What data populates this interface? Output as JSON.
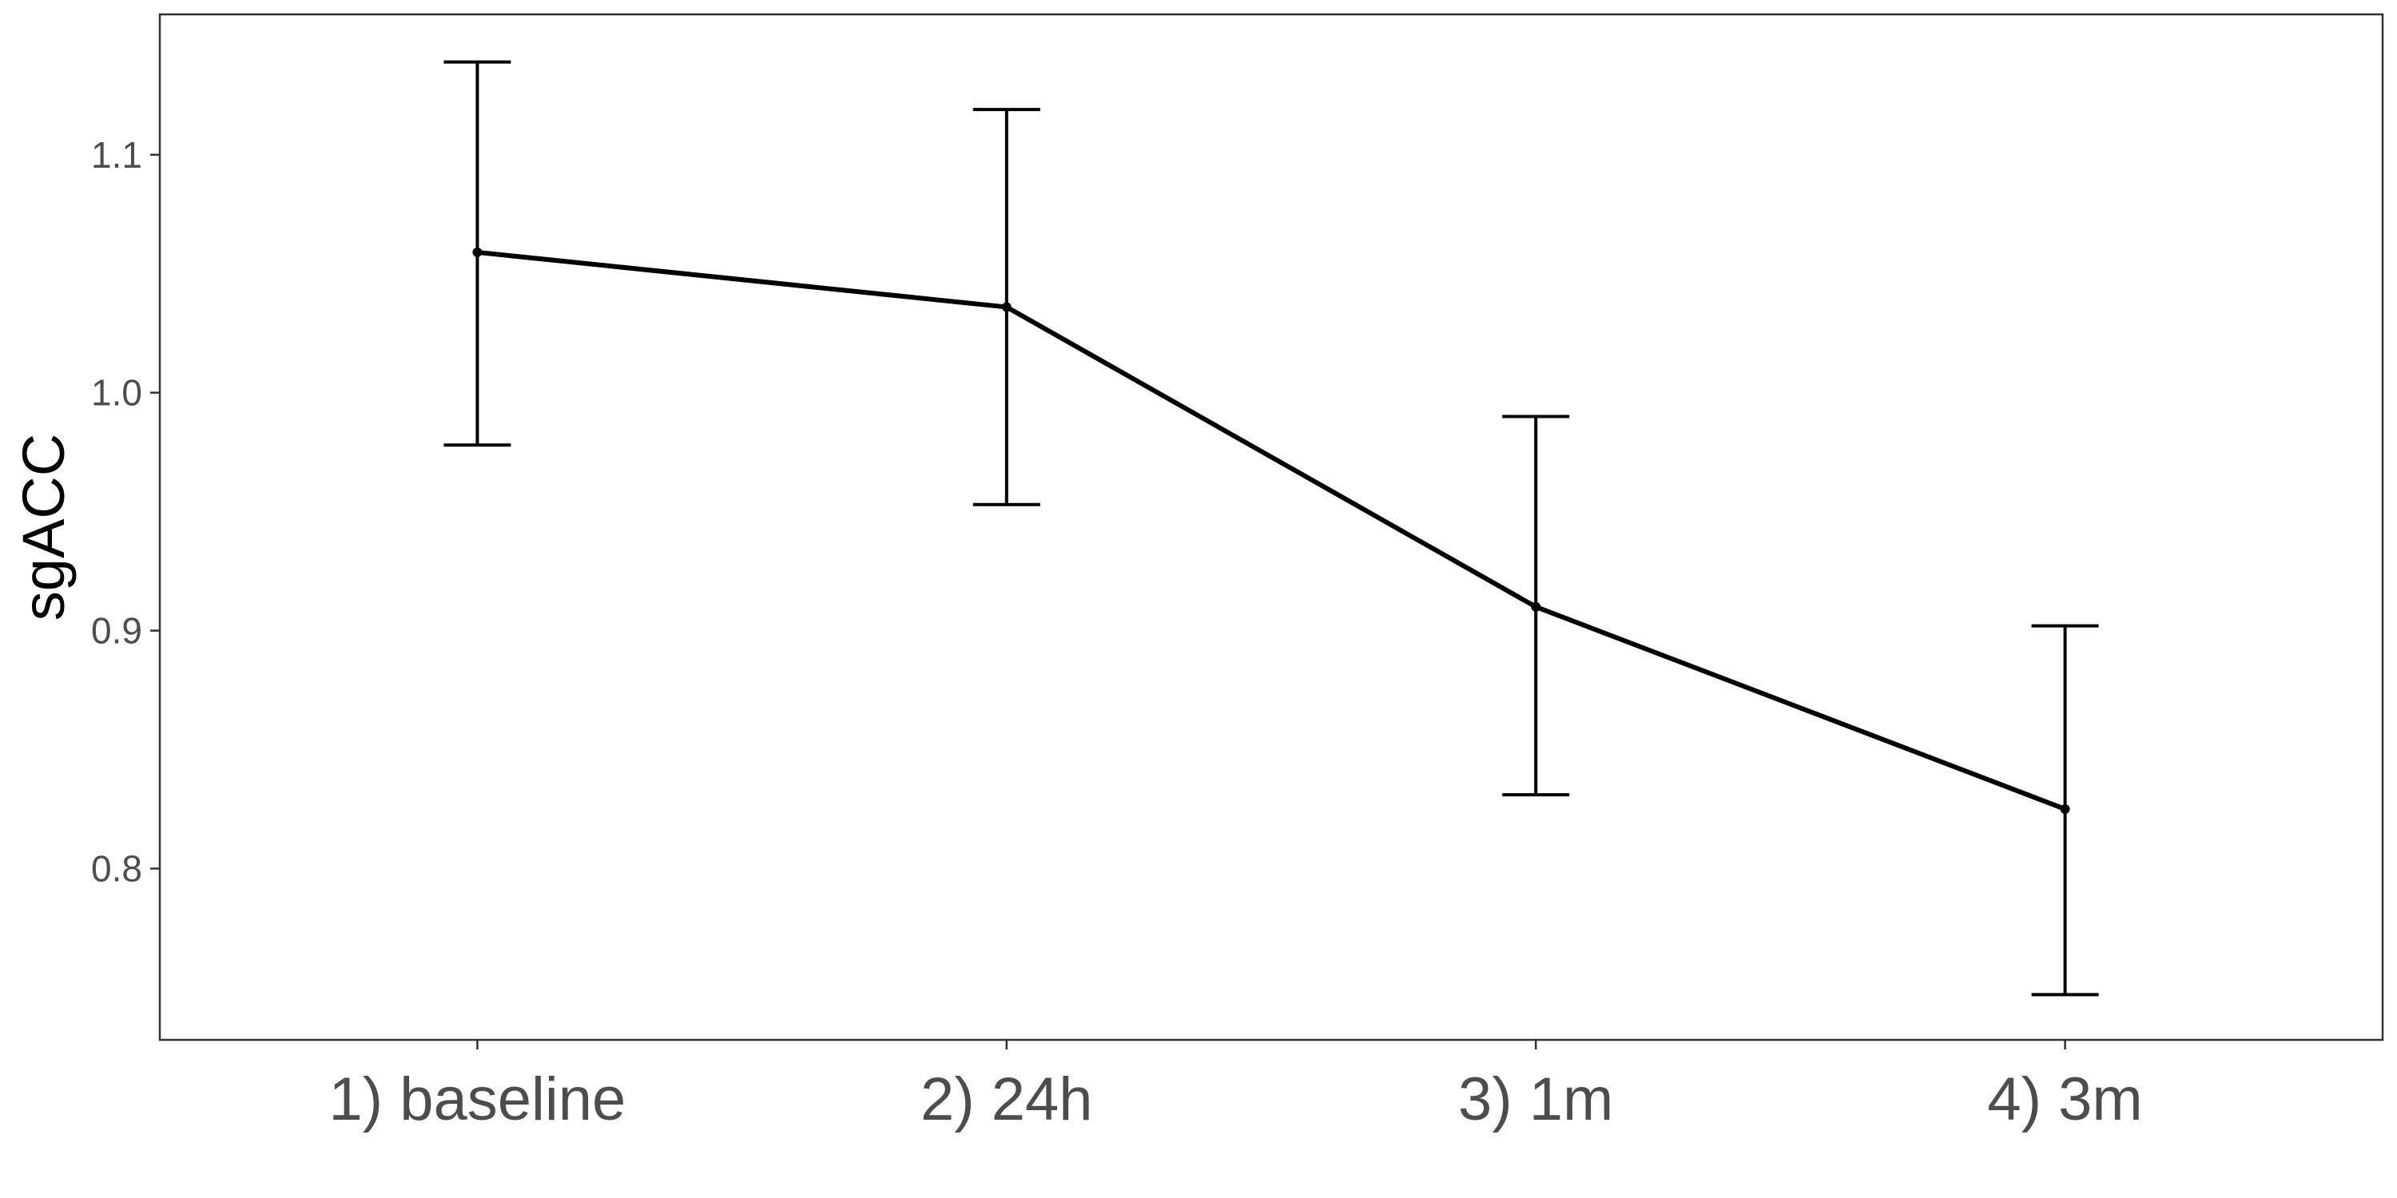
{
  "chart_data": {
    "type": "line",
    "title": "",
    "xlabel": "",
    "ylabel": "sgACC",
    "categories": [
      "1) baseline",
      "2) 24h",
      "3) 1m",
      "4) 3m"
    ],
    "series": [
      {
        "values": [
          1.059,
          1.036,
          0.91,
          0.825
        ],
        "error_low": [
          0.978,
          0.953,
          0.831,
          0.747
        ],
        "error_high": [
          1.139,
          1.119,
          0.99,
          0.902
        ]
      }
    ],
    "yticks": [
      0.8,
      0.9,
      1.0,
      1.1
    ],
    "ytick_labels": [
      "0.8",
      "0.9",
      "1.0",
      "1.1"
    ],
    "ylim": [
      0.728,
      1.159
    ],
    "grid": false,
    "legend": "none",
    "colors": {
      "line": "#000000",
      "axis_text": "#4d4d4d",
      "panel_border": "#333333"
    }
  }
}
